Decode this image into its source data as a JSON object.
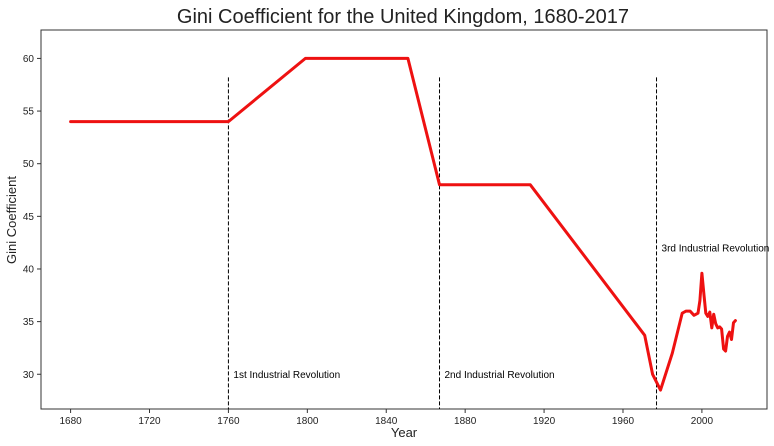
{
  "chart_data": {
    "type": "line",
    "title": "Gini Coefficient for the United Kingdom, 1680-2017",
    "xlabel": "Year",
    "ylabel": "Gini Coefficient",
    "xlim": [
      1665,
      2033
    ],
    "ylim": [
      26.7,
      62.7
    ],
    "xticks": [
      1680,
      1720,
      1760,
      1800,
      1840,
      1880,
      1920,
      1960,
      2000
    ],
    "yticks": [
      30,
      35,
      40,
      45,
      50,
      55,
      60
    ],
    "grid": false,
    "series": [
      {
        "color": "#ee1111",
        "x": [
          1680,
          1760,
          1799,
          1851,
          1867,
          1913,
          1971,
          1975,
          1979,
          1985,
          1990,
          1992,
          1994,
          1996,
          1998,
          1999,
          2000,
          2001,
          2002,
          2003,
          2004,
          2005,
          2006,
          2007,
          2008,
          2009,
          2010,
          2011,
          2012,
          2013,
          2014,
          2015,
          2016,
          2017
        ],
        "values": [
          54,
          54,
          60,
          60,
          48,
          48,
          33.7,
          30.0,
          28.5,
          32,
          35.8,
          36.0,
          36.0,
          35.6,
          35.8,
          37.0,
          39.6,
          37.6,
          35.8,
          35.5,
          35.9,
          34.4,
          35.7,
          34.8,
          34.4,
          34.5,
          34.3,
          32.4,
          32.2,
          33.6,
          34.0,
          33.3,
          34.9,
          35.1
        ]
      }
    ],
    "vlines": [
      {
        "x": 1760,
        "label": "1st Industrial Revolution",
        "label_y": 30
      },
      {
        "x": 1867,
        "label": "2nd Industrial Revolution",
        "label_y": 30
      },
      {
        "x": 1977,
        "label": "3rd Industrial Revolution",
        "label_y": 42
      }
    ]
  }
}
